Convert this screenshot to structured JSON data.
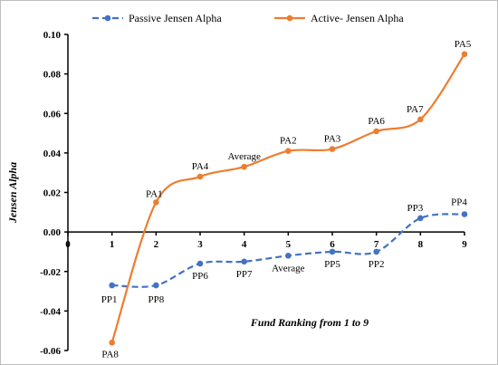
{
  "chart_data": {
    "type": "line",
    "xlabel": "Fund Ranking from 1 to 9",
    "ylabel": "Jensen Alpha",
    "xlim": [
      0,
      9
    ],
    "ylim": [
      -0.06,
      0.1
    ],
    "x_ticks": [
      "0",
      "1",
      "2",
      "3",
      "4",
      "5",
      "6",
      "7",
      "8",
      "9"
    ],
    "y_ticks": [
      "0.10",
      "0.08",
      "0.06",
      "0.04",
      "0.02",
      "0.00",
      "-0.02",
      "-0.04",
      "-0.06"
    ],
    "grid": false,
    "legend_position": "top",
    "series": [
      {
        "name": "Passive Jensen Alpha",
        "color": "#4472c4",
        "line_style": "dashed",
        "x": [
          1,
          2,
          3,
          4,
          5,
          6,
          7,
          8,
          9
        ],
        "values": [
          -0.027,
          -0.027,
          -0.016,
          -0.015,
          -0.012,
          -0.01,
          -0.01,
          0.007,
          0.009
        ],
        "point_labels": [
          "PP1",
          "PP8",
          "PP6",
          "PP7",
          "Average",
          "PP5",
          "PP2",
          "PP3",
          "PP4"
        ]
      },
      {
        "name": "Active- Jensen Alpha",
        "color": "#ed7d31",
        "line_style": "solid",
        "x": [
          1,
          2,
          3,
          4,
          5,
          6,
          7,
          8,
          9
        ],
        "values": [
          -0.056,
          0.015,
          0.028,
          0.033,
          0.041,
          0.042,
          0.051,
          0.057,
          0.09
        ],
        "point_labels": [
          "PA8",
          "PA1",
          "PA4",
          "Average",
          "PA2",
          "PA3",
          "PA6",
          "PA7",
          "PA5"
        ]
      }
    ]
  }
}
